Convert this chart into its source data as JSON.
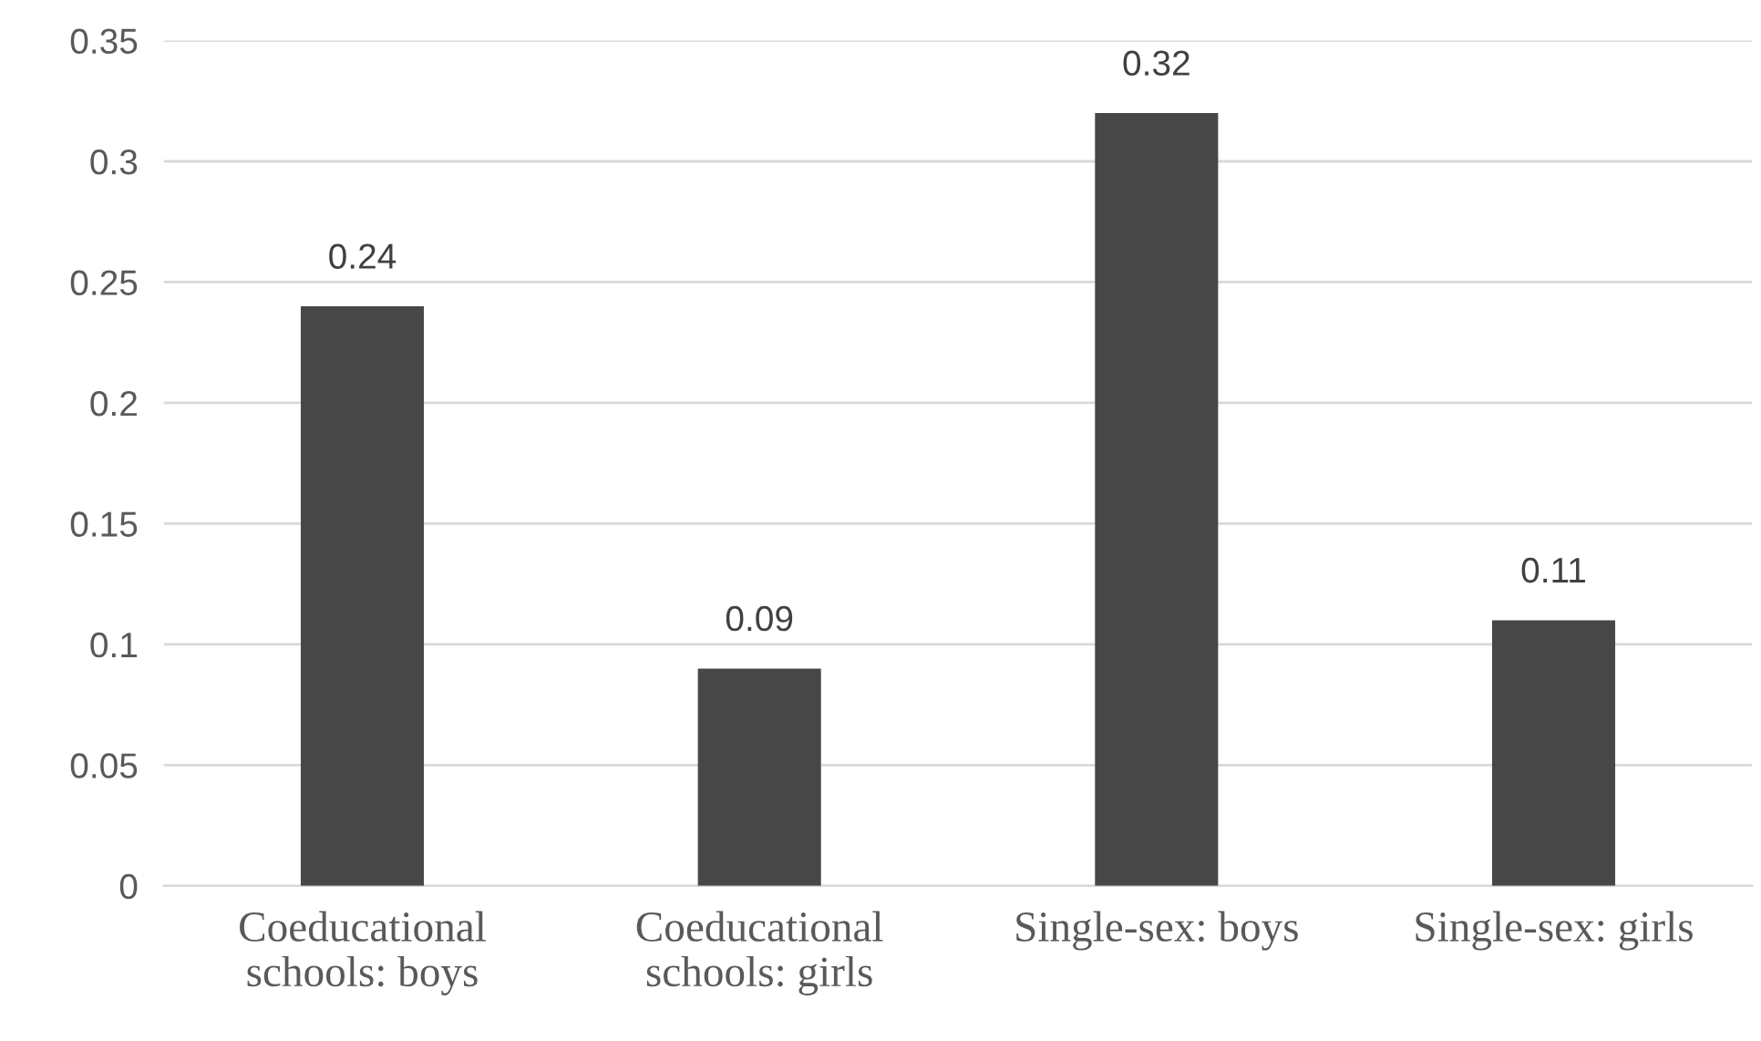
{
  "chart_data": {
    "type": "bar",
    "categories": [
      "Coeducational\nschools: boys",
      "Coeducational\nschools: girls",
      "Single-sex: boys",
      "Single-sex: girls"
    ],
    "values": [
      0.24,
      0.09,
      0.32,
      0.11
    ],
    "color": "#474747",
    "ylim": [
      0,
      0.35
    ],
    "yticks": [
      0,
      0.05,
      0.1,
      0.15,
      0.2,
      0.25,
      0.3,
      0.35
    ],
    "grid": "y",
    "data_labels": true,
    "legend": false
  }
}
